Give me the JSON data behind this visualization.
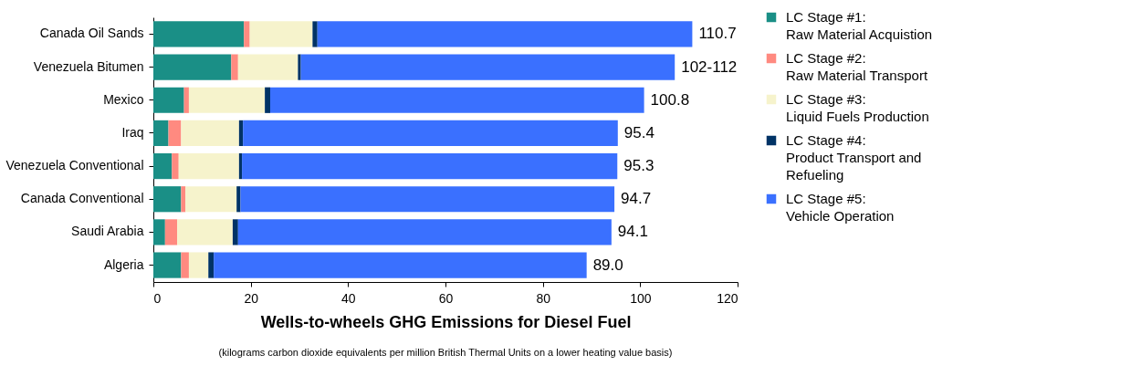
{
  "chart_data": {
    "type": "bar",
    "orientation": "horizontal",
    "stacked": true,
    "categories": [
      "Canada Oil Sands",
      "Venezuela Bitumen",
      "Mexico",
      "Iraq",
      "Venezuela Conventional",
      "Canada Conventional",
      "Saudi Arabia",
      "Algeria"
    ],
    "series": [
      {
        "name": "LC Stage #1:\nRaw Material Acquistion",
        "color": "#1a8f86",
        "values": [
          18.6,
          16.0,
          6.3,
          3.1,
          3.8,
          5.7,
          2.4,
          5.7
        ]
      },
      {
        "name": "LC Stage #2:\nRaw Material Transport",
        "color": "#ff8a80",
        "values": [
          1.2,
          1.4,
          1.0,
          2.6,
          1.4,
          0.9,
          2.5,
          1.6
        ]
      },
      {
        "name": "LC Stage #3:\nLiquid Fuels Production",
        "color": "#f6f3cc",
        "values": [
          12.9,
          12.3,
          15.6,
          11.9,
          12.4,
          10.5,
          11.4,
          4.0
        ]
      },
      {
        "name": "LC Stage #4:\nProduct Transport and\nRefueling",
        "color": "#003366",
        "values": [
          1.0,
          0.6,
          1.1,
          0.8,
          0.6,
          0.8,
          1.1,
          1.1
        ]
      },
      {
        "name": "LC Stage #5:\nVehicle Operation",
        "color": "#3a70ff",
        "values": [
          77.0,
          76.8,
          76.8,
          77.0,
          77.1,
          76.8,
          76.7,
          76.6
        ]
      }
    ],
    "totals": [
      "110.7",
      "102-112",
      "100.8",
      "95.4",
      "95.3",
      "94.7",
      "94.1",
      "89.0"
    ],
    "xlim": [
      0,
      120
    ],
    "xticks": [
      0,
      20,
      40,
      60,
      80,
      100,
      120
    ],
    "xlabel": "Wells-to-wheels GHG Emissions for Diesel Fuel",
    "annotations": [
      "(kilograms carbon dioxide equivalents per million British Thermal Units on a lower heating value basis)"
    ],
    "grid": false,
    "legend": "right"
  }
}
